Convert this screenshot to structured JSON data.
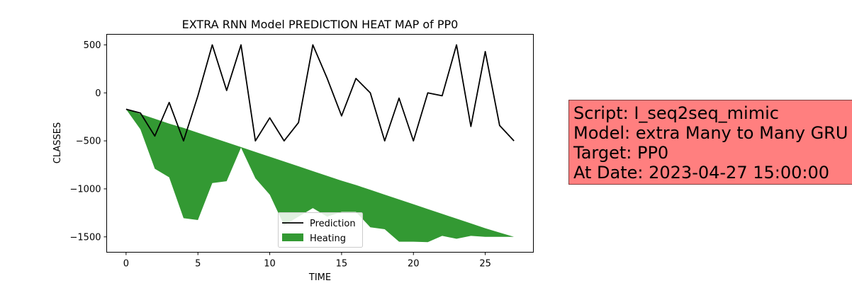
{
  "chart_data": {
    "type": "line",
    "title": "EXTRA RNN Model PREDICTION HEAT MAP of PP0",
    "xlabel": "TIME",
    "ylabel": "CLASSES",
    "xlim": [
      -1.35,
      28.35
    ],
    "ylim": [
      -1660,
      610
    ],
    "xticks": [
      0,
      5,
      10,
      15,
      20,
      25
    ],
    "yticks": [
      -1500,
      -1000,
      -500,
      0,
      500
    ],
    "xtick_labels": [
      "0",
      "5",
      "10",
      "15",
      "20",
      "25"
    ],
    "ytick_labels": [
      "−1500",
      "−1000",
      "−500",
      "0",
      "500"
    ],
    "grid": false,
    "legend_position": "lower center",
    "x": [
      0,
      1,
      2,
      3,
      4,
      5,
      6,
      7,
      8,
      9,
      10,
      11,
      12,
      13,
      14,
      15,
      16,
      17,
      18,
      19,
      20,
      21,
      22,
      23,
      24,
      25,
      26,
      27
    ],
    "series": [
      {
        "name": "Prediction",
        "type": "line",
        "color": "#000000",
        "values": [
          -170,
          -210,
          -450,
          -100,
          -500,
          -30,
          500,
          25,
          500,
          -500,
          -260,
          -500,
          -310,
          500,
          150,
          -240,
          150,
          0,
          -500,
          -55,
          -500,
          0,
          -30,
          500,
          -350,
          430,
          -340,
          -500
        ]
      },
      {
        "name": "Heating",
        "type": "area",
        "color": "#339933",
        "upper": [
          -170,
          -220,
          -270,
          -320,
          -365,
          -415,
          -465,
          -515,
          -565,
          -615,
          -665,
          -715,
          -765,
          -815,
          -865,
          -915,
          -960,
          -1010,
          -1060,
          -1110,
          -1160,
          -1210,
          -1260,
          -1310,
          -1360,
          -1410,
          -1455,
          -1500
        ],
        "lower": [
          -170,
          -380,
          -790,
          -880,
          -1305,
          -1325,
          -940,
          -920,
          -570,
          -890,
          -1060,
          -1380,
          -1290,
          -1200,
          -1290,
          -1240,
          -1240,
          -1400,
          -1420,
          -1550,
          -1550,
          -1555,
          -1490,
          -1520,
          -1490,
          -1500,
          -1500,
          -1500
        ]
      }
    ]
  },
  "info": {
    "script": "Script: I_seq2seq_mimic",
    "model": "Model: extra Many to Many GRU",
    "target": "Target: PP0",
    "date": "At Date: 2023-04-27 15:00:00"
  }
}
